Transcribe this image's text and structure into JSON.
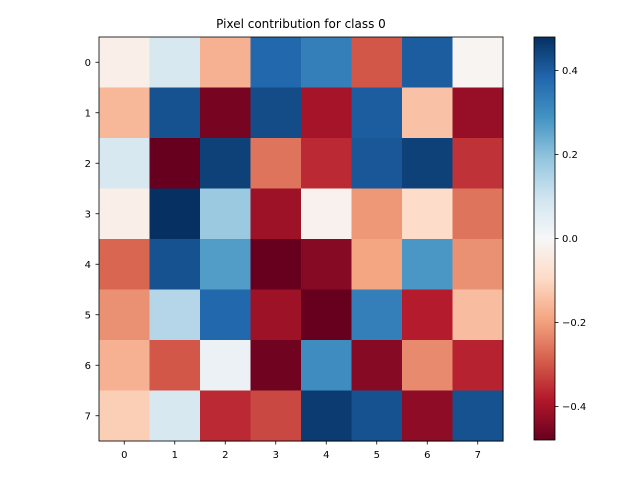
{
  "chart_data": {
    "type": "heatmap",
    "title": "Pixel contribution for class 0",
    "xlabel": "",
    "ylabel": "",
    "colormap": "RdBu",
    "x_categories": [
      "0",
      "1",
      "2",
      "3",
      "4",
      "5",
      "6",
      "7"
    ],
    "y_categories": [
      "0",
      "1",
      "2",
      "3",
      "4",
      "5",
      "6",
      "7"
    ],
    "values": [
      [
        -0.03,
        0.08,
        -0.17,
        0.38,
        0.33,
        -0.3,
        0.4,
        -0.01
      ],
      [
        -0.16,
        0.42,
        -0.46,
        0.43,
        -0.4,
        0.4,
        -0.14,
        -0.42
      ],
      [
        0.08,
        -0.48,
        0.45,
        -0.26,
        -0.36,
        0.41,
        0.45,
        -0.35
      ],
      [
        -0.03,
        0.48,
        0.18,
        -0.41,
        -0.02,
        -0.21,
        -0.09,
        -0.26
      ],
      [
        -0.28,
        0.42,
        0.27,
        -0.48,
        -0.44,
        -0.19,
        0.28,
        -0.22
      ],
      [
        -0.22,
        0.14,
        0.38,
        -0.41,
        -0.48,
        0.33,
        -0.38,
        -0.15
      ],
      [
        -0.17,
        -0.3,
        0.03,
        -0.47,
        0.3,
        -0.44,
        -0.23,
        -0.37
      ],
      [
        -0.12,
        0.08,
        -0.36,
        -0.32,
        0.46,
        0.42,
        -0.43,
        0.42
      ]
    ],
    "vmin": -0.48,
    "vmax": 0.48,
    "colorbar_ticks": [
      {
        "value": 0.4,
        "label": "0.4"
      },
      {
        "value": 0.2,
        "label": "0.2"
      },
      {
        "value": 0.0,
        "label": "0.0"
      },
      {
        "value": -0.2,
        "label": "−0.2"
      },
      {
        "value": -0.4,
        "label": "−0.4"
      }
    ],
    "grid": false
  }
}
